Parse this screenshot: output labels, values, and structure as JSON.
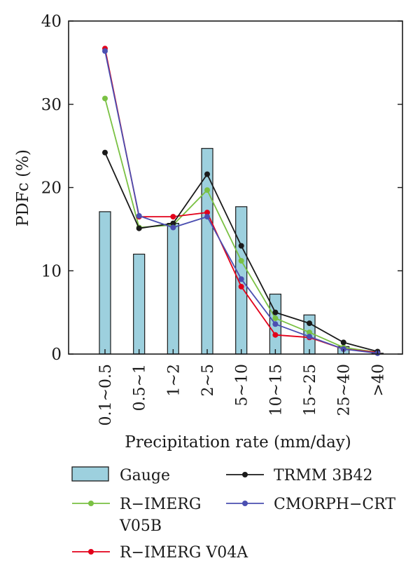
{
  "chart_data": {
    "type": "bar",
    "xlabel": "Precipitation rate (mm/day)",
    "ylabel": "PDFc (%)",
    "ylim": [
      0,
      40
    ],
    "yticks": [
      0,
      10,
      20,
      30,
      40
    ],
    "grid": false,
    "legend_position": "bottom",
    "categories": [
      "0.1~0.5",
      "0.5~1",
      "1~2",
      "2~5",
      "5~10",
      "10~15",
      "15~25",
      "25~40",
      ">40"
    ],
    "bar_series": {
      "name": "Gauge",
      "color": "#9dd0de",
      "values": [
        17.1,
        12.0,
        15.7,
        24.7,
        17.7,
        7.2,
        4.7,
        0.9,
        0.1
      ]
    },
    "series": [
      {
        "name": "R−IMERG V05B",
        "color": "#7ac143",
        "values": [
          30.7,
          15.2,
          15.5,
          19.7,
          11.2,
          4.3,
          2.6,
          0.8,
          0.2
        ]
      },
      {
        "name": "R−IMERG V04A",
        "color": "#e2001a",
        "values": [
          36.7,
          16.5,
          16.5,
          17.0,
          8.1,
          2.3,
          2.0,
          0.6,
          0.2
        ]
      },
      {
        "name": "TRMM 3B42",
        "color": "#1a1a1a",
        "values": [
          24.2,
          15.1,
          15.7,
          21.6,
          13.0,
          5.0,
          3.7,
          1.4,
          0.3
        ]
      },
      {
        "name": "CMORPH−CRT",
        "color": "#4b4fb1",
        "values": [
          36.4,
          16.6,
          15.2,
          16.5,
          9.0,
          3.6,
          2.1,
          0.6,
          0.1
        ]
      }
    ],
    "legend": [
      {
        "key": "gauge",
        "label": "Gauge",
        "kind": "bar",
        "color": "#9dd0de"
      },
      {
        "key": "trmm",
        "label": "TRMM 3B42",
        "kind": "line",
        "color": "#1a1a1a"
      },
      {
        "key": "v05b",
        "label": [
          "R−IMERG",
          "V05B"
        ],
        "kind": "line",
        "color": "#7ac143"
      },
      {
        "key": "cmorph",
        "label": "CMORPH−CRT",
        "kind": "line",
        "color": "#4b4fb1"
      },
      {
        "key": "v04a",
        "label": "R−IMERG V04A",
        "kind": "line",
        "color": "#e2001a"
      }
    ]
  }
}
